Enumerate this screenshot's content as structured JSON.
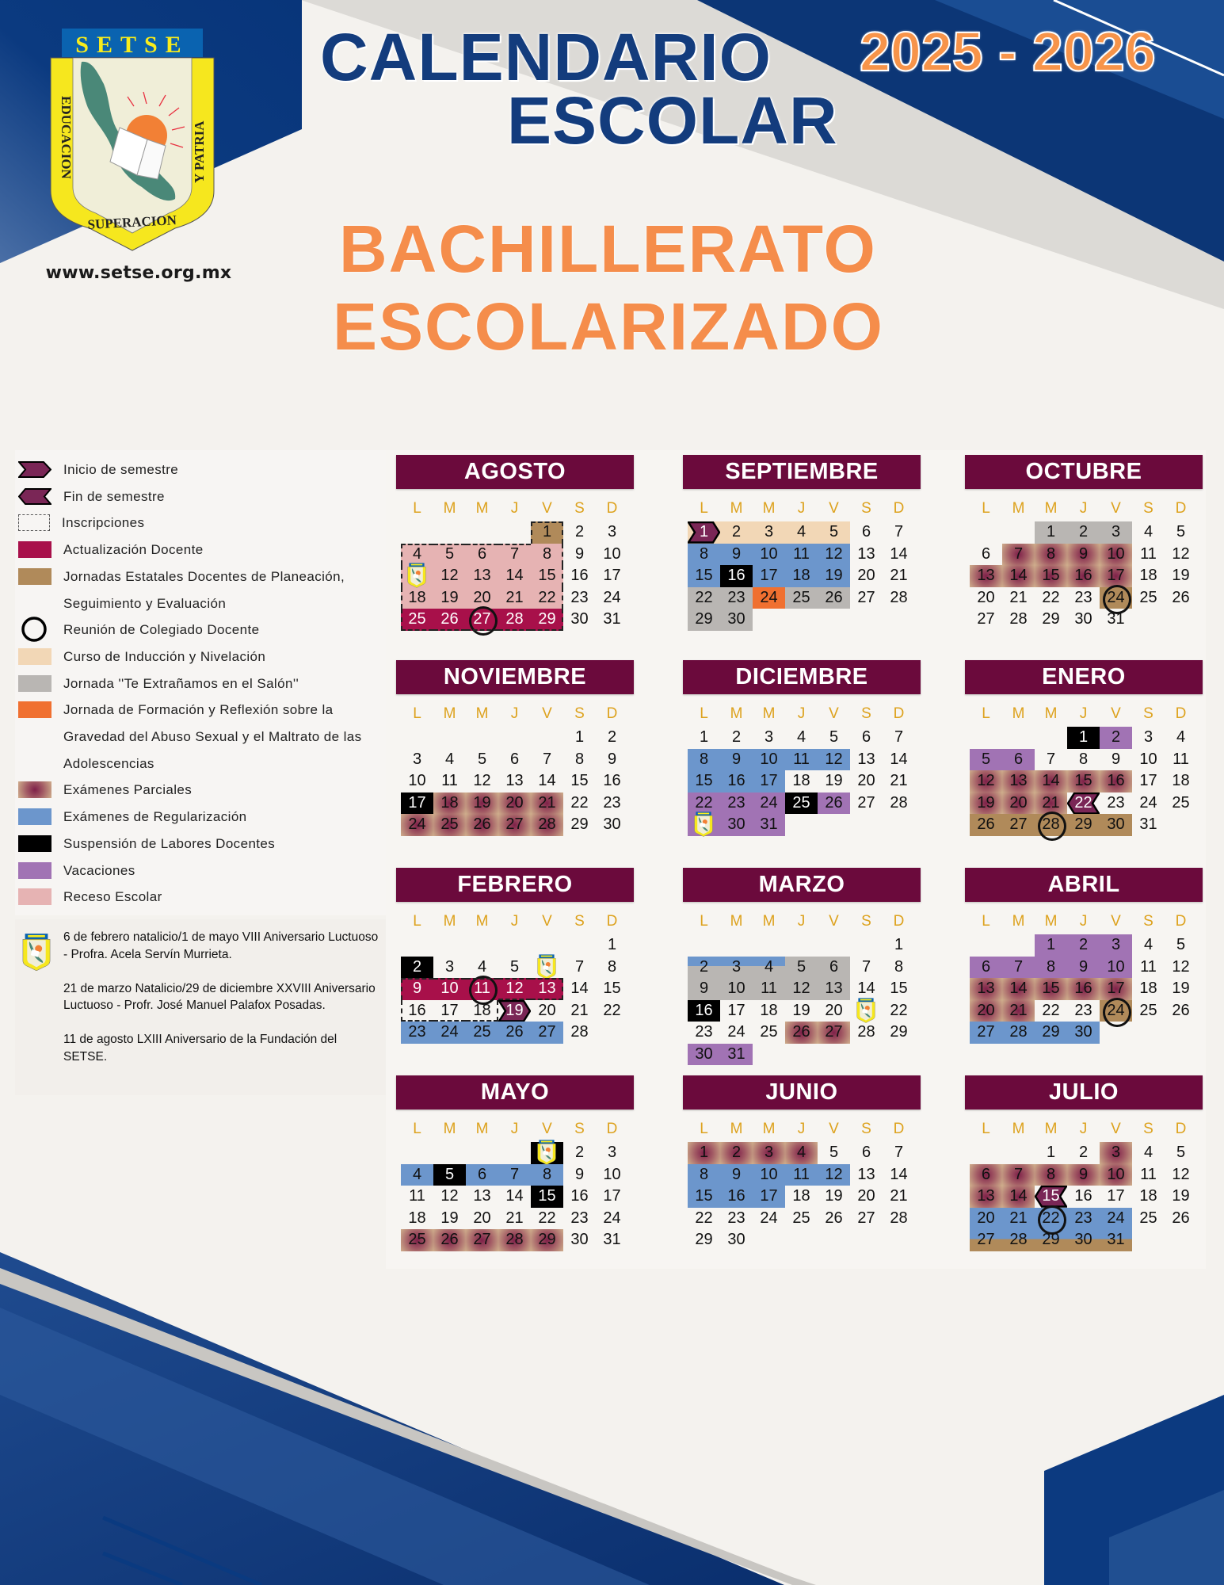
{
  "header": {
    "title_line1": "CALENDARIO",
    "title_line2": "ESCOLAR",
    "years": "2025 - 2026",
    "subtitle_line1": "BACHILLERATO",
    "subtitle_line2": "ESCOLARIZADO",
    "url": "www.setse.org.mx",
    "logo": {
      "banner": "SETSE",
      "left": "EDUCACION",
      "right": "Y PATRIA",
      "bottom": "SUPERACION"
    }
  },
  "legend": [
    {
      "type": "inicio",
      "label": "Inicio de semestre"
    },
    {
      "type": "fin",
      "label": "Fin de semestre"
    },
    {
      "type": "inscripciones",
      "label": "Inscripciones"
    },
    {
      "type": "actualizacion",
      "label": "Actualización Docente"
    },
    {
      "type": "jornadas",
      "label": "Jornadas Estatales Docentes de Planeación,\nSeguimiento y Evaluación"
    },
    {
      "type": "colegiado",
      "label": "Reunión de Colegiado Docente"
    },
    {
      "type": "induccion",
      "label": "Curso de Inducción y Nivelación"
    },
    {
      "type": "te_extranamos",
      "label": "Jornada ''Te Extrañamos en el Salón''"
    },
    {
      "type": "formacion",
      "label": "Jornada de Formación y Reflexión sobre la\nGravedad del Abuso Sexual y el Maltrato de las\nAdolescencias"
    },
    {
      "type": "parciales",
      "label": "Exámenes Parciales"
    },
    {
      "type": "regularizacion",
      "label": "Exámenes de Regularización"
    },
    {
      "type": "suspension",
      "label": "Suspensión de Labores Docentes"
    },
    {
      "type": "vacaciones",
      "label": "Vacaciones"
    },
    {
      "type": "receso",
      "label": "Receso Escolar"
    }
  ],
  "notes": [
    "6 de febrero natalicio/1 de mayo VIII Aniversario Luctuoso - Profra. Acela Servín Murrieta.",
    "21 de marzo Natalicio/29 de diciembre XXVIII Aniversario Luctuoso - Profr. José Manuel Palafox Posadas.",
    "11 de agosto LXIII Aniversario de la Fundación del SETSE."
  ],
  "colors": {
    "header": "#6b0a3c",
    "weekday": "#dda21e",
    "actualizacion": "#a8104a",
    "jornadas": "#b08a5a",
    "induccion": "#f2d7b6",
    "te_extranamos": "#b9b6b3",
    "formacion": "#f07030",
    "parciales": "#8a2a50",
    "regularizacion": "#6c96cc",
    "suspension": "#000000",
    "vacaciones": "#a173b4",
    "receso": "#e6b3b3",
    "semestre": "#7a2656",
    "navy": "#0a3a80",
    "orange": "#f58d4b"
  },
  "calendar": {
    "weekdays": [
      "L",
      "M",
      "M",
      "J",
      "V",
      "S",
      "D"
    ],
    "months": [
      {
        "name": "AGOSTO",
        "first_weekday": 4,
        "days": 31,
        "marks": [
          {
            "type": "jornadas",
            "days": [
              1
            ]
          },
          {
            "type": "receso",
            "days": [
              4,
              5,
              6,
              7,
              8,
              11,
              12,
              13,
              14,
              15,
              18,
              19,
              20,
              21,
              22
            ]
          },
          {
            "type": "actualizacion",
            "days": [
              25,
              26,
              27,
              28,
              29
            ]
          },
          {
            "type": "colegiado",
            "days": [
              27
            ]
          },
          {
            "type": "logo",
            "days": [
              11
            ]
          },
          {
            "type": "inscripciones",
            "days": [
              1,
              4,
              5,
              6,
              7,
              8,
              11,
              12,
              13,
              14,
              15,
              18,
              19,
              20,
              21,
              22,
              25,
              26,
              27,
              28,
              29
            ]
          }
        ]
      },
      {
        "name": "SEPTIEMBRE",
        "first_weekday": 0,
        "days": 30,
        "marks": [
          {
            "type": "induccion",
            "days": [
              1,
              2,
              3,
              4,
              5
            ]
          },
          {
            "type": "inicio",
            "days": [
              1
            ]
          },
          {
            "type": "regularizacion",
            "days": [
              8,
              9,
              10,
              11,
              12,
              15,
              17,
              18,
              19
            ]
          },
          {
            "type": "suspension",
            "days": [
              16
            ]
          },
          {
            "type": "te_extranamos",
            "days": [
              22,
              23,
              25,
              26,
              29,
              30
            ]
          },
          {
            "type": "formacion",
            "days": [
              24
            ]
          }
        ]
      },
      {
        "name": "OCTUBRE",
        "first_weekday": 2,
        "days": 31,
        "marks": [
          {
            "type": "te_extranamos",
            "days": [
              1,
              2,
              3
            ]
          },
          {
            "type": "parciales",
            "days": [
              7,
              8,
              9,
              10,
              13,
              14,
              15,
              16,
              17
            ]
          },
          {
            "type": "jornadas",
            "days": [
              24
            ]
          },
          {
            "type": "colegiado",
            "days": [
              24
            ]
          }
        ]
      },
      {
        "name": "NOVIEMBRE",
        "first_weekday": 5,
        "days": 30,
        "marks": [
          {
            "type": "suspension",
            "days": [
              17
            ]
          },
          {
            "type": "parciales",
            "days": [
              18,
              19,
              20,
              21,
              24,
              25,
              26,
              27,
              28
            ]
          }
        ]
      },
      {
        "name": "DICIEMBRE",
        "first_weekday": 0,
        "days": 31,
        "marks": [
          {
            "type": "regularizacion",
            "days": [
              8,
              9,
              10,
              11,
              12,
              15,
              16,
              17
            ]
          },
          {
            "type": "vacaciones",
            "days": [
              22,
              23,
              24,
              26,
              29,
              30,
              31
            ]
          },
          {
            "type": "suspension",
            "days": [
              25
            ]
          },
          {
            "type": "logo",
            "days": [
              29
            ]
          }
        ]
      },
      {
        "name": "ENERO",
        "first_weekday": 3,
        "days": 31,
        "marks": [
          {
            "type": "suspension",
            "days": [
              1
            ]
          },
          {
            "type": "vacaciones",
            "days": [
              2,
              5,
              6
            ]
          },
          {
            "type": "parciales",
            "days": [
              12,
              13,
              14,
              15,
              16,
              19,
              20,
              21
            ]
          },
          {
            "type": "fin",
            "days": [
              22
            ]
          },
          {
            "type": "jornadas",
            "days": [
              26,
              27,
              28,
              29,
              30
            ]
          },
          {
            "type": "colegiado",
            "days": [
              28
            ]
          }
        ]
      },
      {
        "name": "FEBRERO",
        "first_weekday": 6,
        "days": 28,
        "marks": [
          {
            "type": "suspension",
            "days": [
              2
            ]
          },
          {
            "type": "logo",
            "days": [
              6
            ]
          },
          {
            "type": "actualizacion",
            "days": [
              9,
              10,
              11,
              12,
              13
            ]
          },
          {
            "type": "colegiado",
            "days": [
              11
            ]
          },
          {
            "type": "inicio",
            "days": [
              19
            ]
          },
          {
            "type": "regularizacion",
            "days": [
              23,
              24,
              25,
              26,
              27
            ]
          },
          {
            "type": "inscripciones",
            "days": [
              9,
              10,
              11,
              12,
              13,
              16,
              17,
              18
            ]
          }
        ]
      },
      {
        "name": "MARZO",
        "first_weekday": 6,
        "days": 31,
        "marks": [
          {
            "type": "regularizacion",
            "days": [
              2,
              3,
              4
            ]
          },
          {
            "type": "te_extranamos",
            "days": [
              2,
              3,
              4,
              5,
              6,
              9,
              10,
              11,
              12,
              13
            ]
          },
          {
            "type": "suspension",
            "days": [
              16
            ]
          },
          {
            "type": "logo",
            "days": [
              21
            ]
          },
          {
            "type": "parciales",
            "days": [
              26,
              27
            ]
          },
          {
            "type": "vacaciones",
            "days": [
              30,
              31
            ]
          }
        ]
      },
      {
        "name": "ABRIL",
        "first_weekday": 2,
        "days": 30,
        "marks": [
          {
            "type": "vacaciones",
            "days": [
              1,
              2,
              3,
              6,
              7,
              8,
              9,
              10
            ]
          },
          {
            "type": "parciales",
            "days": [
              13,
              14,
              15,
              16,
              17,
              20,
              21
            ]
          },
          {
            "type": "jornadas",
            "days": [
              24
            ]
          },
          {
            "type": "colegiado",
            "days": [
              24
            ]
          },
          {
            "type": "regularizacion",
            "days": [
              27,
              28,
              29,
              30
            ]
          }
        ]
      },
      {
        "name": "MAYO",
        "first_weekday": 4,
        "days": 31,
        "marks": [
          {
            "type": "suspension",
            "days": [
              1,
              5,
              15
            ]
          },
          {
            "type": "logo",
            "days": [
              1
            ]
          },
          {
            "type": "regularizacion",
            "days": [
              4,
              6,
              7,
              8
            ]
          },
          {
            "type": "parciales",
            "days": [
              25,
              26,
              27,
              28,
              29
            ]
          }
        ]
      },
      {
        "name": "JUNIO",
        "first_weekday": 0,
        "days": 30,
        "marks": [
          {
            "type": "parciales",
            "days": [
              1,
              2,
              3,
              4
            ]
          },
          {
            "type": "regularizacion",
            "days": [
              8,
              9,
              10,
              11,
              12,
              15,
              16,
              17
            ]
          }
        ]
      },
      {
        "name": "JULIO",
        "first_weekday": 2,
        "days": 31,
        "marks": [
          {
            "type": "parciales",
            "days": [
              3,
              6,
              7,
              8,
              9,
              10,
              13,
              14
            ]
          },
          {
            "type": "fin",
            "days": [
              15
            ]
          },
          {
            "type": "regularizacion",
            "days": [
              20,
              21,
              22,
              23,
              24,
              27,
              28,
              29,
              30,
              31
            ]
          },
          {
            "type": "jornadas",
            "days": [
              27,
              28,
              29,
              30,
              31
            ]
          },
          {
            "type": "colegiado",
            "days": [
              22
            ]
          }
        ]
      }
    ]
  }
}
